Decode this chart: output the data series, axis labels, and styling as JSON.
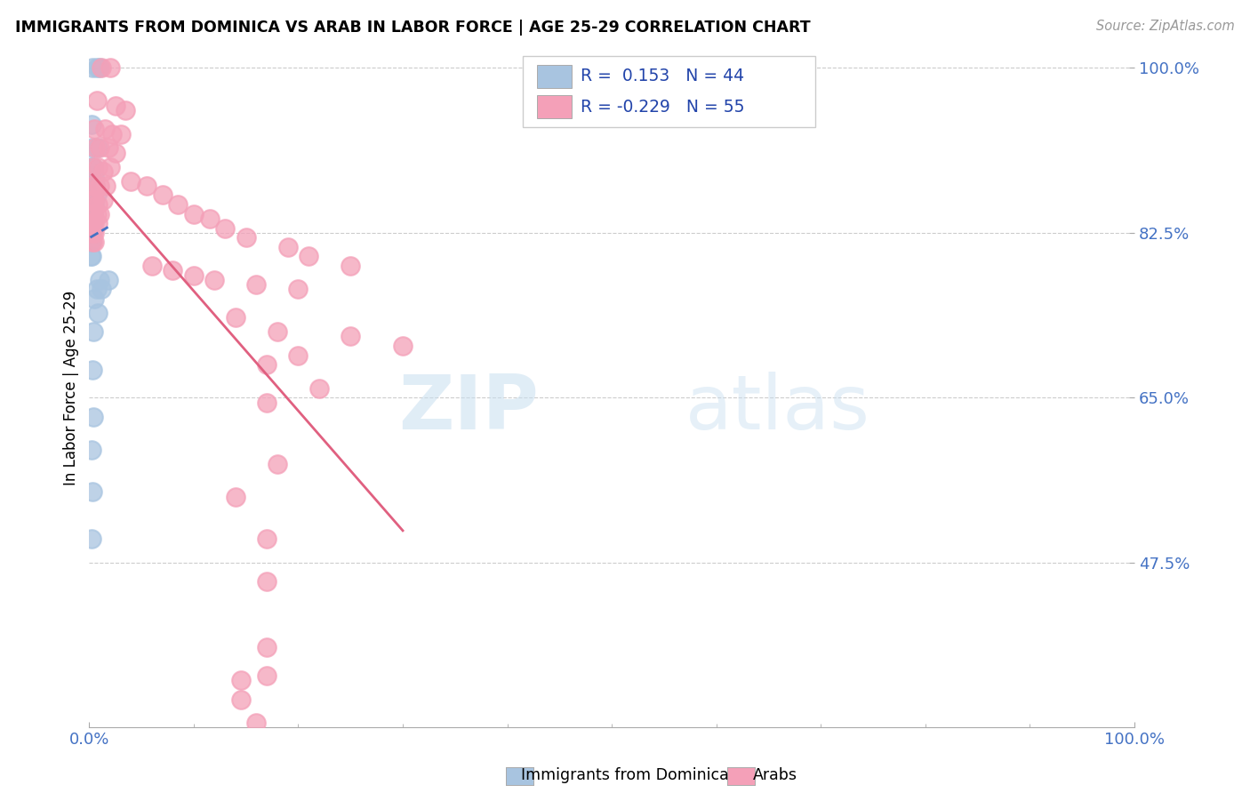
{
  "title": "IMMIGRANTS FROM DOMINICA VS ARAB IN LABOR FORCE | AGE 25-29 CORRELATION CHART",
  "source": "Source: ZipAtlas.com",
  "ylabel": "In Labor Force | Age 25-29",
  "x_min": 0.0,
  "x_max": 1.0,
  "y_min": 0.3,
  "y_max": 1.02,
  "y_ticks": [
    0.475,
    0.65,
    0.825,
    1.0
  ],
  "y_tick_labels": [
    "47.5%",
    "65.0%",
    "82.5%",
    "100.0%"
  ],
  "x_ticks": [
    0.0,
    1.0
  ],
  "x_tick_labels": [
    "0.0%",
    "100.0%"
  ],
  "dominica_color": "#a8c4e0",
  "arab_color": "#f4a0b8",
  "dominica_line_color": "#4472c4",
  "arab_line_color": "#e06080",
  "watermark_zip": "ZIP",
  "watermark_atlas": "atlas",
  "bottom_label_dominica": "Immigrants from Dominica",
  "bottom_label_arab": "Arabs",
  "dominica_points": [
    [
      0.003,
      1.0
    ],
    [
      0.007,
      1.0
    ],
    [
      0.01,
      1.0
    ],
    [
      0.002,
      0.94
    ],
    [
      0.003,
      0.915
    ],
    [
      0.008,
      0.915
    ],
    [
      0.001,
      0.895
    ],
    [
      0.004,
      0.895
    ],
    [
      0.002,
      0.885
    ],
    [
      0.005,
      0.885
    ],
    [
      0.001,
      0.875
    ],
    [
      0.003,
      0.875
    ],
    [
      0.006,
      0.875
    ],
    [
      0.001,
      0.865
    ],
    [
      0.002,
      0.865
    ],
    [
      0.004,
      0.865
    ],
    [
      0.007,
      0.865
    ],
    [
      0.001,
      0.855
    ],
    [
      0.002,
      0.855
    ],
    [
      0.003,
      0.855
    ],
    [
      0.005,
      0.855
    ],
    [
      0.001,
      0.845
    ],
    [
      0.002,
      0.845
    ],
    [
      0.004,
      0.845
    ],
    [
      0.001,
      0.835
    ],
    [
      0.003,
      0.835
    ],
    [
      0.001,
      0.825
    ],
    [
      0.002,
      0.825
    ],
    [
      0.001,
      0.815
    ],
    [
      0.002,
      0.815
    ],
    [
      0.001,
      0.8
    ],
    [
      0.002,
      0.8
    ],
    [
      0.01,
      0.775
    ],
    [
      0.018,
      0.775
    ],
    [
      0.007,
      0.765
    ],
    [
      0.012,
      0.765
    ],
    [
      0.005,
      0.755
    ],
    [
      0.008,
      0.74
    ],
    [
      0.004,
      0.72
    ],
    [
      0.003,
      0.68
    ],
    [
      0.004,
      0.63
    ],
    [
      0.002,
      0.595
    ],
    [
      0.003,
      0.55
    ],
    [
      0.002,
      0.5
    ]
  ],
  "arab_points": [
    [
      0.012,
      1.0
    ],
    [
      0.02,
      1.0
    ],
    [
      0.007,
      0.965
    ],
    [
      0.025,
      0.96
    ],
    [
      0.035,
      0.955
    ],
    [
      0.005,
      0.935
    ],
    [
      0.015,
      0.935
    ],
    [
      0.022,
      0.93
    ],
    [
      0.03,
      0.93
    ],
    [
      0.006,
      0.915
    ],
    [
      0.01,
      0.915
    ],
    [
      0.018,
      0.915
    ],
    [
      0.025,
      0.91
    ],
    [
      0.004,
      0.895
    ],
    [
      0.008,
      0.895
    ],
    [
      0.013,
      0.89
    ],
    [
      0.02,
      0.895
    ],
    [
      0.003,
      0.875
    ],
    [
      0.006,
      0.875
    ],
    [
      0.01,
      0.875
    ],
    [
      0.016,
      0.875
    ],
    [
      0.003,
      0.86
    ],
    [
      0.005,
      0.86
    ],
    [
      0.008,
      0.855
    ],
    [
      0.013,
      0.86
    ],
    [
      0.004,
      0.845
    ],
    [
      0.007,
      0.845
    ],
    [
      0.01,
      0.845
    ],
    [
      0.003,
      0.835
    ],
    [
      0.005,
      0.835
    ],
    [
      0.008,
      0.835
    ],
    [
      0.003,
      0.825
    ],
    [
      0.005,
      0.825
    ],
    [
      0.003,
      0.815
    ],
    [
      0.005,
      0.815
    ],
    [
      0.04,
      0.88
    ],
    [
      0.055,
      0.875
    ],
    [
      0.07,
      0.865
    ],
    [
      0.085,
      0.855
    ],
    [
      0.1,
      0.845
    ],
    [
      0.115,
      0.84
    ],
    [
      0.13,
      0.83
    ],
    [
      0.15,
      0.82
    ],
    [
      0.19,
      0.81
    ],
    [
      0.21,
      0.8
    ],
    [
      0.25,
      0.79
    ],
    [
      0.06,
      0.79
    ],
    [
      0.08,
      0.785
    ],
    [
      0.1,
      0.78
    ],
    [
      0.12,
      0.775
    ],
    [
      0.16,
      0.77
    ],
    [
      0.2,
      0.765
    ],
    [
      0.14,
      0.735
    ],
    [
      0.18,
      0.72
    ],
    [
      0.25,
      0.715
    ],
    [
      0.3,
      0.705
    ],
    [
      0.2,
      0.695
    ],
    [
      0.17,
      0.685
    ],
    [
      0.22,
      0.66
    ],
    [
      0.17,
      0.645
    ],
    [
      0.18,
      0.58
    ],
    [
      0.14,
      0.545
    ],
    [
      0.17,
      0.5
    ],
    [
      0.17,
      0.455
    ],
    [
      0.17,
      0.385
    ],
    [
      0.17,
      0.355
    ],
    [
      0.145,
      0.35
    ],
    [
      0.145,
      0.33
    ],
    [
      0.16,
      0.305
    ]
  ]
}
